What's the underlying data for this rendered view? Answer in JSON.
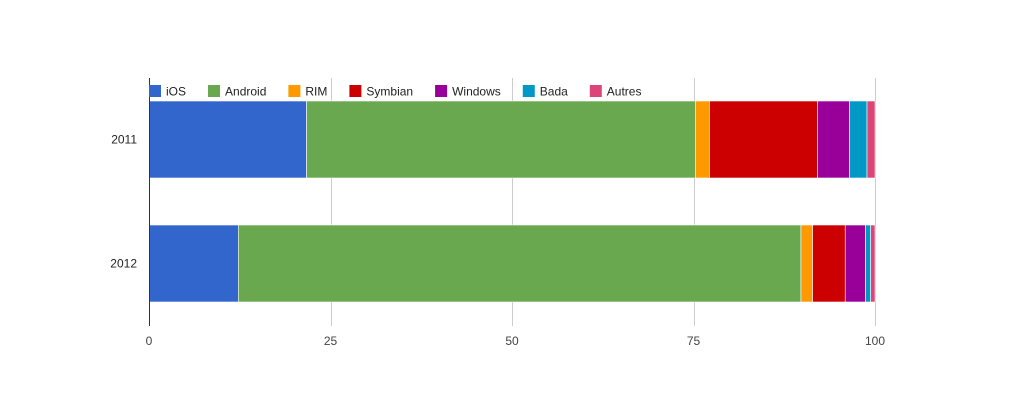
{
  "chart_data": {
    "type": "bar",
    "orientation": "horizontal",
    "stacked": true,
    "categories": [
      "2011",
      "2012"
    ],
    "series": [
      {
        "name": "iOS",
        "color": "#3366cc",
        "values": [
          21.7,
          12.3
        ]
      },
      {
        "name": "Android",
        "color": "#6aa84f",
        "values": [
          53.6,
          77.5
        ]
      },
      {
        "name": "RIM",
        "color": "#ff9900",
        "values": [
          1.9,
          1.6
        ]
      },
      {
        "name": "Symbian",
        "color": "#cc0000",
        "values": [
          14.9,
          4.5
        ]
      },
      {
        "name": "Windows",
        "color": "#990099",
        "values": [
          4.4,
          2.8
        ]
      },
      {
        "name": "Bada",
        "color": "#0099c6",
        "values": [
          2.4,
          0.7
        ]
      },
      {
        "name": "Autres",
        "color": "#dd4477",
        "values": [
          1.1,
          0.6
        ]
      }
    ],
    "xlim": [
      0,
      100
    ],
    "xticks": [
      0,
      25,
      50,
      75,
      100
    ],
    "xtick_labels": [
      "0",
      "25",
      "50",
      "75",
      "100"
    ],
    "grid": true,
    "legend_position": "top-left",
    "title": "",
    "xlabel": "",
    "ylabel": ""
  }
}
